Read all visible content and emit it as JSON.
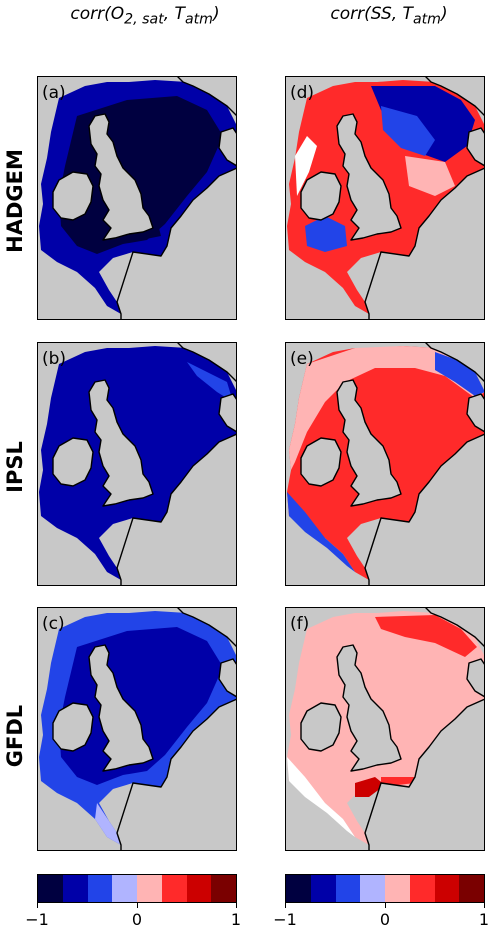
{
  "columns": [
    {
      "title_main": "corr(O",
      "title_sub": "2, sat",
      "title_mid": ", T",
      "title_sub2": "atm",
      "title_end": ")"
    },
    {
      "title_main": "corr(SS, T",
      "title_sub": "atm",
      "title_end": ")"
    }
  ],
  "rows": [
    {
      "model": "HADGEM"
    },
    {
      "model": "IPSL"
    },
    {
      "model": "GFDL"
    }
  ],
  "panels": [
    {
      "label": "(a)"
    },
    {
      "label": "(d)"
    },
    {
      "label": "(b)"
    },
    {
      "label": "(e)"
    },
    {
      "label": "(c)"
    },
    {
      "label": "(f)"
    }
  ],
  "colorbar": {
    "colors": [
      "#000040",
      "#0000a8",
      "#2244e8",
      "#b0b4ff",
      "#ffb4b4",
      "#ff2a2a",
      "#cc0000",
      "#7a0000"
    ],
    "tick_labels": [
      "−1",
      "0",
      "1"
    ]
  },
  "map_colors": {
    "land": "#c8c8c8",
    "coast": "#000000"
  }
}
